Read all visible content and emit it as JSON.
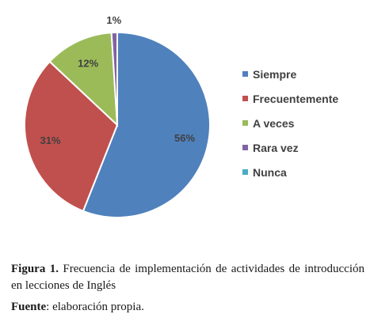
{
  "chart_data": {
    "type": "pie",
    "categories": [
      "Siempre",
      "Frecuentemente",
      "A veces",
      "Rara vez",
      "Nunca"
    ],
    "values": [
      56,
      31,
      12,
      1,
      0
    ],
    "labels": [
      "56%",
      "31%",
      "12%",
      "1%",
      ""
    ],
    "colors": [
      "#4F81BD",
      "#C0504D",
      "#9BBB59",
      "#8064A2",
      "#4BACC6"
    ],
    "legend_position": "right"
  },
  "caption": {
    "prefix": "Figura 1.",
    "text": " Frecuencia de implementación de actividades de introducción en lecciones de Inglés"
  },
  "source": {
    "prefix": "Fuente",
    "text": ": elaboración propia."
  }
}
